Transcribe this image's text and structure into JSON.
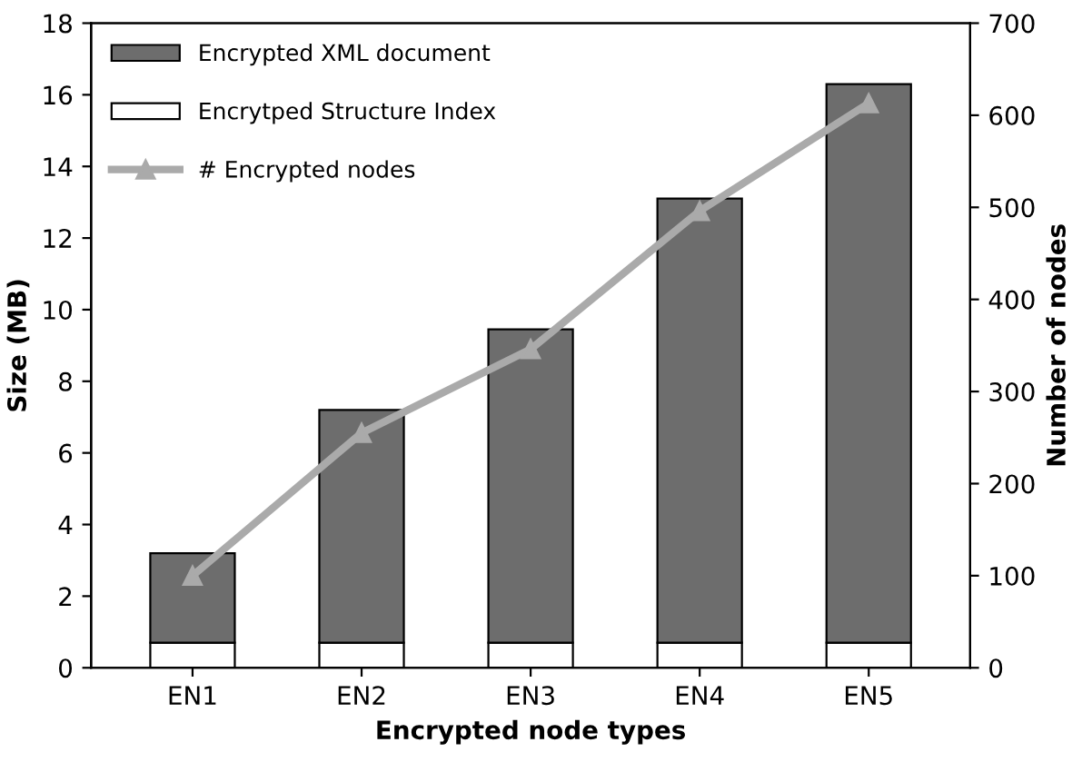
{
  "chart_data": {
    "type": "bar",
    "stacked": true,
    "xlabel": "Encrypted node types",
    "ylabel": "Size (MB)",
    "y2label": "Number of nodes",
    "categories": [
      "EN1",
      "EN2",
      "EN3",
      "EN4",
      "EN5"
    ],
    "series": [
      {
        "name": "Encrytped Structure Index",
        "color": "#ffffff",
        "values": [
          0.7,
          0.7,
          0.7,
          0.7,
          0.7
        ]
      },
      {
        "name": "Encrypted XML document",
        "color": "#6d6d6d",
        "values": [
          2.5,
          6.5,
          8.75,
          12.4,
          15.6
        ]
      },
      {
        "name": "# Encrypted nodes",
        "type": "line",
        "axis": "y2",
        "color": "#aaaaaa",
        "marker": "triangle",
        "line_style": "solid",
        "values": [
          100,
          255,
          346,
          496,
          613
        ]
      }
    ],
    "ylim": [
      0,
      18
    ],
    "yticks": [
      0,
      2,
      4,
      6,
      8,
      10,
      12,
      14,
      16,
      18
    ],
    "y2lim": [
      0,
      700
    ],
    "y2ticks": [
      0,
      100,
      200,
      300,
      400,
      500,
      600,
      700
    ],
    "legend": "top left",
    "grid": false
  }
}
